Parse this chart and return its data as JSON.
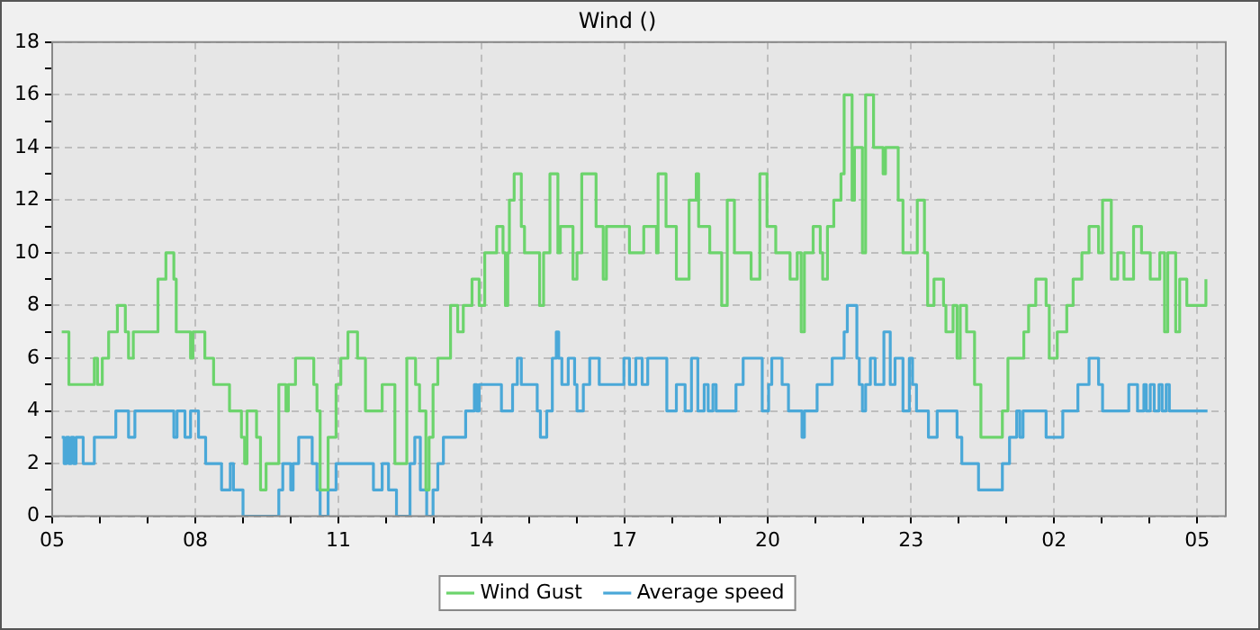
{
  "chart_data": {
    "type": "step",
    "title": "Wind ()",
    "xlim": [
      "--01-01T05:00",
      "--01-02T05:36"
    ],
    "ylim": [
      0,
      18
    ],
    "xticks": [
      {
        "value": "--01-01T05:00",
        "label": "05"
      },
      {
        "value": "--01-01T06:00",
        "label": null
      },
      {
        "value": "--01-01T07:00",
        "label": null
      },
      {
        "value": "--01-01T08:00",
        "label": "08"
      },
      {
        "value": "--01-01T09:00",
        "label": null
      },
      {
        "value": "--01-01T10:00",
        "label": null
      },
      {
        "value": "--01-01T11:00",
        "label": "11"
      },
      {
        "value": "--01-01T12:00",
        "label": null
      },
      {
        "value": "--01-01T13:00",
        "label": null
      },
      {
        "value": "--01-01T14:00",
        "label": "14"
      },
      {
        "value": "--01-01T15:00",
        "label": null
      },
      {
        "value": "--01-01T16:00",
        "label": null
      },
      {
        "value": "--01-01T17:00",
        "label": "17"
      },
      {
        "value": "--01-01T18:00",
        "label": null
      },
      {
        "value": "--01-01T19:00",
        "label": null
      },
      {
        "value": "--01-01T20:00",
        "label": "20"
      },
      {
        "value": "--01-01T21:00",
        "label": null
      },
      {
        "value": "--01-01T22:00",
        "label": null
      },
      {
        "value": "--01-01T23:00",
        "label": "23"
      },
      {
        "value": "--01-02T00:00",
        "label": null
      },
      {
        "value": "--01-02T01:00",
        "label": null
      },
      {
        "value": "--01-02T02:00",
        "label": "02"
      },
      {
        "value": "--01-02T03:00",
        "label": null
      },
      {
        "value": "--01-02T04:00",
        "label": null
      },
      {
        "value": "--01-02T05:00",
        "label": "05"
      }
    ],
    "yticks": [
      0,
      {
        "value": 1,
        "label": null
      },
      2,
      {
        "value": 3,
        "label": null
      },
      4,
      {
        "value": 5,
        "label": null
      },
      6,
      {
        "value": 7,
        "label": null
      },
      8,
      {
        "value": 9,
        "label": null
      },
      10,
      {
        "value": 11,
        "label": null
      },
      12,
      {
        "value": 13,
        "label": null
      },
      14,
      {
        "value": 15,
        "label": null
      },
      16,
      {
        "value": 17,
        "label": null
      },
      18
    ],
    "grid": true,
    "legend": "bottom",
    "line_style": "solid",
    "marker": "none",
    "series": [
      {
        "name": "Wind Gust",
        "color": "#6cd46c",
        "x": [
          "--01-01T05:12",
          "--01-01T05:21",
          "--01-01T05:53",
          "--01-01T05:57",
          "--01-01T06:03",
          "--01-01T06:11",
          "--01-01T06:22",
          "--01-01T06:32",
          "--01-01T06:36",
          "--01-01T06:42",
          "--01-01T07:13",
          "--01-01T07:23",
          "--01-01T07:33",
          "--01-01T07:36",
          "--01-01T07:54",
          "--01-01T07:57",
          "--01-01T08:12",
          "--01-01T08:23",
          "--01-01T08:43",
          "--01-01T08:58",
          "--01-01T09:02",
          "--01-01T09:05",
          "--01-01T09:17",
          "--01-01T09:22",
          "--01-01T09:29",
          "--01-01T09:45",
          "--01-01T09:54",
          "--01-01T09:57",
          "--01-01T10:06",
          "--01-01T10:29",
          "--01-01T10:33",
          "--01-01T10:37",
          "--01-01T10:47",
          "--01-01T10:57",
          "--01-01T11:03",
          "--01-01T11:12",
          "--01-01T11:24",
          "--01-01T11:34",
          "--01-01T11:55",
          "--01-01T12:11",
          "--01-01T12:26",
          "--01-01T12:37",
          "--01-01T12:42",
          "--01-01T12:50",
          "--01-01T12:54",
          "--01-01T12:59",
          "--01-01T13:05",
          "--01-01T13:21",
          "--01-01T13:30",
          "--01-01T13:37",
          "--01-01T13:48",
          "--01-01T13:57",
          "--01-01T14:04",
          "--01-01T14:19",
          "--01-01T14:27",
          "--01-01T14:30",
          "--01-01T14:33",
          "--01-01T14:35",
          "--01-01T14:41",
          "--01-01T14:50",
          "--01-01T14:54",
          "--01-01T15:13",
          "--01-01T15:18",
          "--01-01T15:26",
          "--01-01T15:36",
          "--01-01T15:39",
          "--01-01T15:55",
          "--01-01T16:00",
          "--01-01T16:06",
          "--01-01T16:24",
          "--01-01T16:33",
          "--01-01T16:37",
          "--01-01T17:06",
          "--01-01T17:24",
          "--01-01T17:40",
          "--01-01T17:42",
          "--01-01T17:52",
          "--01-01T18:05",
          "--01-01T18:21",
          "--01-01T18:30",
          "--01-01T18:33",
          "--01-01T18:47",
          "--01-01T19:02",
          "--01-01T19:09",
          "--01-01T19:18",
          "--01-01T19:39",
          "--01-01T19:50",
          "--01-01T19:59",
          "--01-01T20:10",
          "--01-01T20:28",
          "--01-01T20:37",
          "--01-01T20:42",
          "--01-01T20:46",
          "--01-01T20:57",
          "--01-01T21:06",
          "--01-01T21:09",
          "--01-01T21:15",
          "--01-01T21:23",
          "--01-01T21:32",
          "--01-01T21:36",
          "--01-01T21:46",
          "--01-01T21:49",
          "--01-01T21:59",
          "--01-01T22:03",
          "--01-01T22:13",
          "--01-01T22:25",
          "--01-01T22:28",
          "--01-01T22:44",
          "--01-01T22:50",
          "--01-01T23:08",
          "--01-01T23:17",
          "--01-01T23:21",
          "--01-01T23:29",
          "--01-01T23:41",
          "--01-01T23:44",
          "--01-01T23:53",
          "--01-01T23:58",
          "--01-02T00:02",
          "--01-02T00:10",
          "--01-02T00:20",
          "--01-02T00:28",
          "--01-02T00:55",
          "--01-02T01:02",
          "--01-02T01:22",
          "--01-02T01:28",
          "--01-02T01:37",
          "--01-02T01:50",
          "--01-02T01:54",
          "--01-02T02:04",
          "--01-02T02:16",
          "--01-02T02:24",
          "--01-02T02:35",
          "--01-02T02:44",
          "--01-02T02:56",
          "--01-02T03:01",
          "--01-02T03:12",
          "--01-02T03:20",
          "--01-02T03:28",
          "--01-02T03:40",
          "--01-02T03:50",
          "--01-02T04:01",
          "--01-02T04:13",
          "--01-02T04:19",
          "--01-02T04:23",
          "--01-02T04:33",
          "--01-02T04:38",
          "--01-02T04:47",
          "--01-02T05:11"
        ],
        "values": [
          7,
          5,
          6,
          5,
          6,
          7,
          8,
          7,
          6,
          7,
          9,
          10,
          9,
          7,
          6,
          7,
          6,
          5,
          4,
          3,
          2,
          4,
          3,
          1,
          2,
          5,
          4,
          5,
          6,
          5,
          4,
          1,
          3,
          5,
          6,
          7,
          6,
          4,
          5,
          2,
          6,
          5,
          4,
          1,
          3,
          5,
          6,
          8,
          7,
          8,
          9,
          8,
          10,
          11,
          10,
          8,
          10,
          12,
          13,
          11,
          10,
          8,
          10,
          13,
          10,
          11,
          9,
          10,
          13,
          11,
          9,
          11,
          10,
          11,
          10,
          13,
          11,
          9,
          12,
          13,
          11,
          10,
          8,
          12,
          10,
          9,
          13,
          11,
          10,
          9,
          10,
          7,
          10,
          11,
          10,
          9,
          11,
          12,
          13,
          16,
          12,
          14,
          10,
          16,
          14,
          13,
          14,
          12,
          10,
          12,
          10,
          8,
          9,
          8,
          7,
          8,
          6,
          8,
          7,
          5,
          3,
          4,
          6,
          7,
          8,
          9,
          8,
          6,
          7,
          8,
          9,
          10,
          11,
          10,
          12,
          9,
          10,
          9,
          11,
          10,
          9,
          10,
          7,
          10,
          7,
          9,
          8,
          9
        ]
      },
      {
        "name": "Average speed",
        "color": "#4aa8d8",
        "x": [
          "--01-01T05:12",
          "--01-01T05:15",
          "--01-01T05:18",
          "--01-01T05:21",
          "--01-01T05:24",
          "--01-01T05:27",
          "--01-01T05:30",
          "--01-01T05:39",
          "--01-01T05:53",
          "--01-01T06:20",
          "--01-01T06:36",
          "--01-01T06:44",
          "--01-01T07:33",
          "--01-01T07:37",
          "--01-01T07:47",
          "--01-01T07:54",
          "--01-01T08:04",
          "--01-01T08:13",
          "--01-01T08:33",
          "--01-01T08:44",
          "--01-01T08:48",
          "--01-01T09:00",
          "--01-01T09:45",
          "--01-01T09:50",
          "--01-01T10:00",
          "--01-01T10:03",
          "--01-01T10:10",
          "--01-01T10:27",
          "--01-01T10:33",
          "--01-01T10:37",
          "--01-01T10:47",
          "--01-01T10:57",
          "--01-01T11:44",
          "--01-01T11:55",
          "--01-01T12:03",
          "--01-01T12:13",
          "--01-01T12:30",
          "--01-01T12:36",
          "--01-01T12:43",
          "--01-01T12:51",
          "--01-01T12:59",
          "--01-01T13:05",
          "--01-01T13:12",
          "--01-01T13:40",
          "--01-01T13:51",
          "--01-01T13:54",
          "--01-01T13:57",
          "--01-01T14:25",
          "--01-01T14:39",
          "--01-01T14:45",
          "--01-01T14:50",
          "--01-01T15:10",
          "--01-01T15:14",
          "--01-01T15:22",
          "--01-01T15:29",
          "--01-01T15:34",
          "--01-01T15:37",
          "--01-01T15:41",
          "--01-01T15:49",
          "--01-01T15:57",
          "--01-01T16:00",
          "--01-01T16:08",
          "--01-01T16:16",
          "--01-01T16:28",
          "--01-01T16:59",
          "--01-01T17:06",
          "--01-01T17:14",
          "--01-01T17:22",
          "--01-01T17:29",
          "--01-01T17:53",
          "--01-01T18:05",
          "--01-01T18:16",
          "--01-01T18:24",
          "--01-01T18:32",
          "--01-01T18:40",
          "--01-01T18:45",
          "--01-01T18:51",
          "--01-01T18:55",
          "--01-01T19:20",
          "--01-01T19:29",
          "--01-01T19:53",
          "--01-01T20:01",
          "--01-01T20:05",
          "--01-01T20:18",
          "--01-01T20:26",
          "--01-01T20:43",
          "--01-01T20:46",
          "--01-01T21:02",
          "--01-01T21:21",
          "--01-01T21:36",
          "--01-01T21:40",
          "--01-01T21:52",
          "--01-01T21:55",
          "--01-01T21:59",
          "--01-01T22:03",
          "--01-01T22:09",
          "--01-01T22:15",
          "--01-01T22:26",
          "--01-01T22:34",
          "--01-01T22:40",
          "--01-01T22:50",
          "--01-01T22:58",
          "--01-01T23:02",
          "--01-01T23:07",
          "--01-01T23:22",
          "--01-01T23:33",
          "--01-01T23:58",
          "--01-02T00:04",
          "--01-02T00:25",
          "--01-02T00:55",
          "--01-02T01:04",
          "--01-02T01:13",
          "--01-02T01:17",
          "--01-02T01:21",
          "--01-02T01:50",
          "--01-02T02:11",
          "--01-02T02:30",
          "--01-02T02:44",
          "--01-02T02:56",
          "--01-02T03:01",
          "--01-02T03:34",
          "--01-02T03:45",
          "--01-02T03:53",
          "--01-02T03:56",
          "--01-02T04:01",
          "--01-02T04:06",
          "--01-02T04:12",
          "--01-02T04:16",
          "--01-02T04:21",
          "--01-02T04:25",
          "--01-02T05:13"
        ],
        "values": [
          3,
          2,
          3,
          2,
          3,
          2,
          3,
          2,
          3,
          4,
          3,
          4,
          3,
          4,
          3,
          4,
          3,
          2,
          1,
          2,
          1,
          0,
          1,
          2,
          1,
          2,
          3,
          2,
          1,
          0,
          1,
          2,
          1,
          2,
          1,
          0,
          2,
          3,
          1,
          0,
          1,
          2,
          3,
          4,
          5,
          4,
          5,
          4,
          5,
          6,
          5,
          4,
          3,
          4,
          6,
          7,
          6,
          5,
          6,
          5,
          4,
          5,
          6,
          5,
          6,
          5,
          6,
          5,
          6,
          4,
          5,
          4,
          6,
          4,
          5,
          4,
          5,
          4,
          5,
          6,
          4,
          5,
          6,
          5,
          4,
          3,
          4,
          5,
          6,
          7,
          8,
          6,
          5,
          4,
          5,
          6,
          5,
          7,
          5,
          6,
          4,
          6,
          5,
          4,
          3,
          4,
          3,
          2,
          1,
          2,
          3,
          4,
          3,
          4,
          3,
          4,
          5,
          6,
          5,
          4,
          5,
          4,
          5,
          4,
          5,
          4,
          5,
          4,
          5,
          4,
          4
        ]
      }
    ]
  }
}
